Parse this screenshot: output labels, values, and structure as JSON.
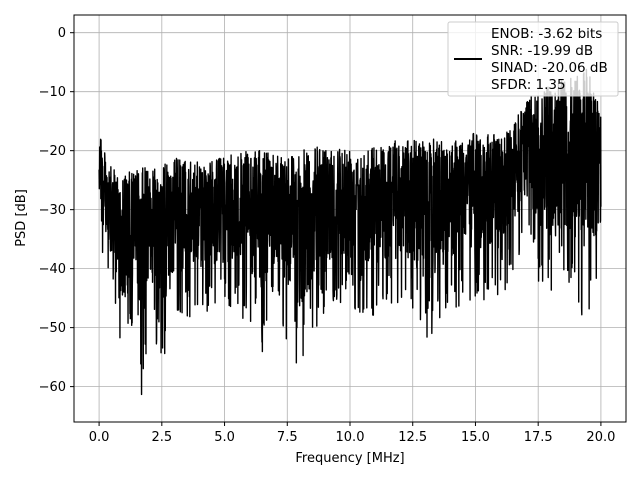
{
  "chart_data": {
    "type": "line",
    "title": "",
    "xlabel": "Frequency [MHz]",
    "ylabel": "PSD [dB]",
    "xlim": [
      -1.0,
      21.0
    ],
    "ylim": [
      -66,
      3
    ],
    "grid": true,
    "legend_position": "top-right",
    "x_ticks": [
      0.0,
      2.5,
      5.0,
      7.5,
      10.0,
      12.5,
      15.0,
      17.5,
      20.0
    ],
    "x_tick_labels": [
      "0.0",
      "2.5",
      "5.0",
      "7.5",
      "10.0",
      "12.5",
      "15.0",
      "17.5",
      "20.0"
    ],
    "y_ticks": [
      0,
      -10,
      -20,
      -30,
      -40,
      -50,
      -60
    ],
    "y_tick_labels": [
      "0",
      "−10",
      "−20",
      "−30",
      "−40",
      "−50",
      "−60"
    ],
    "legend": {
      "lines": [
        "ENOB: -3.62 bits",
        "SNR: -19.99 dB",
        "SINAD: -20.06 dB",
        "SFDR: 1.35"
      ]
    },
    "series": [
      {
        "color": "#000000",
        "x": [
          0.0,
          0.05,
          0.1,
          0.5,
          1.0,
          1.5,
          1.7,
          2.0,
          2.7,
          3.0,
          4.0,
          5.0,
          6.0,
          6.5,
          7.0,
          8.0,
          9.0,
          10.0,
          11.0,
          12.0,
          12.5,
          13.0,
          14.0,
          15.0,
          16.0,
          16.5,
          17.0,
          17.5,
          18.0,
          18.5,
          19.0,
          19.5,
          20.0
        ],
        "envelope_high": [
          -18,
          -10,
          -19,
          -23,
          -24,
          -23,
          -23,
          -22,
          -22,
          -21,
          -22,
          -21,
          -20,
          -20,
          -20,
          -20,
          -19,
          -19,
          -19,
          -18,
          -18,
          -18,
          -18,
          -17,
          -17,
          -16,
          -11,
          -10,
          -9,
          -8,
          -7,
          -6,
          -12
        ],
        "envelope_low": [
          -30,
          -35,
          -39,
          -44,
          -56,
          -50,
          -63,
          -50,
          -57,
          -50,
          -48,
          -47,
          -49,
          -55,
          -48,
          -58,
          -47,
          -47,
          -48,
          -47,
          -48,
          -53,
          -47,
          -46,
          -45,
          -42,
          -35,
          -42,
          -47,
          -44,
          -48,
          -50,
          -42
        ]
      }
    ]
  }
}
